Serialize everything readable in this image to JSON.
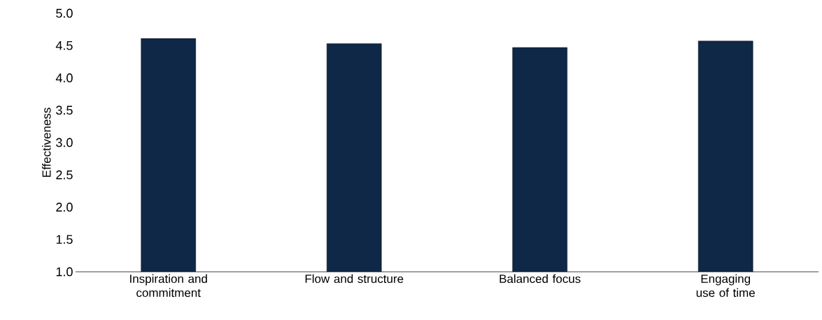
{
  "chart_data": {
    "type": "bar",
    "ylabel": "Effectiveness",
    "categories": [
      "Inspiration and commitment",
      "Flow and structure",
      "Balanced focus",
      "Engaging use of time"
    ],
    "values": [
      4.61,
      4.53,
      4.47,
      4.57
    ],
    "color": "#0f2847",
    "ylim": [
      1.0,
      5.0
    ],
    "yticks": [
      {
        "value": 1.0,
        "label": "1.0"
      },
      {
        "value": 1.5,
        "label": "1.5"
      },
      {
        "value": 2.0,
        "label": "2.0"
      },
      {
        "value": 2.5,
        "label": "2.5"
      },
      {
        "value": 3.0,
        "label": "3.0"
      },
      {
        "value": 3.5,
        "label": "3.5"
      },
      {
        "value": 4.0,
        "label": "4.0"
      },
      {
        "value": 4.5,
        "label": "4.5"
      },
      {
        "value": 5.0,
        "label": "5.0"
      }
    ]
  }
}
